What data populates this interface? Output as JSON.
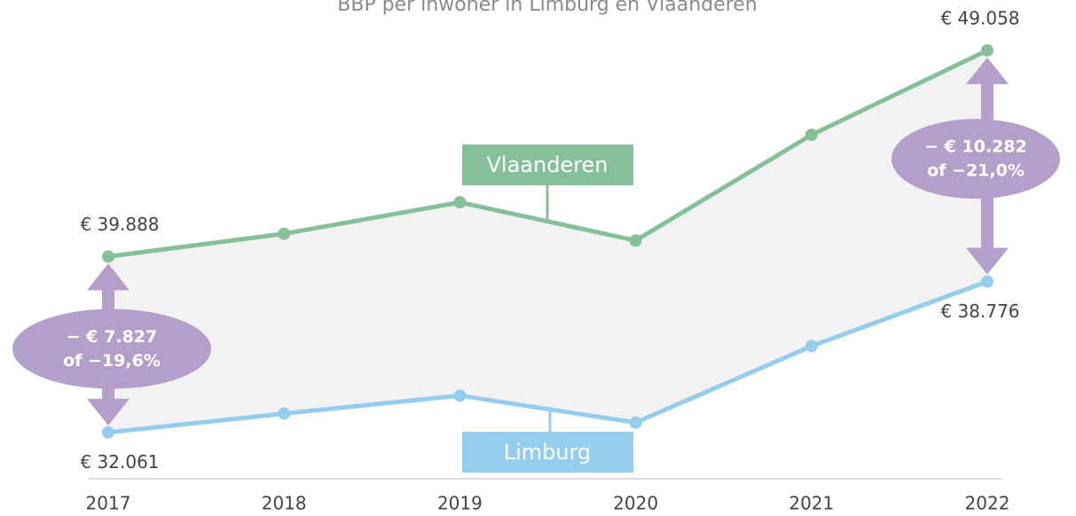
{
  "chart_data": {
    "type": "line",
    "title": "BBP per inwoner in Limburg en Vlaanderen",
    "categories": [
      "2017",
      "2018",
      "2019",
      "2020",
      "2021",
      "2022"
    ],
    "series": [
      {
        "name": "Vlaanderen",
        "color": "#86c09a",
        "values": [
          39888,
          40900,
          42300,
          40600,
          45300,
          49058
        ],
        "value_labels": [
          "€ 39.888",
          null,
          null,
          null,
          null,
          "€ 49.058"
        ]
      },
      {
        "name": "Limburg",
        "color": "#95cdee",
        "values": [
          32061,
          32900,
          33700,
          32500,
          35900,
          38776
        ],
        "value_labels": [
          "€ 32.061",
          null,
          null,
          null,
          null,
          "€ 38.776"
        ]
      }
    ],
    "ylim": [
      30000,
      51300
    ],
    "annotations": [
      {
        "lines": [
          "− € 7.827",
          "of −19,6%"
        ],
        "color": "#b49fca"
      },
      {
        "lines": [
          "− € 10.282",
          "of −21,0%"
        ],
        "color": "#b49fca"
      }
    ]
  }
}
